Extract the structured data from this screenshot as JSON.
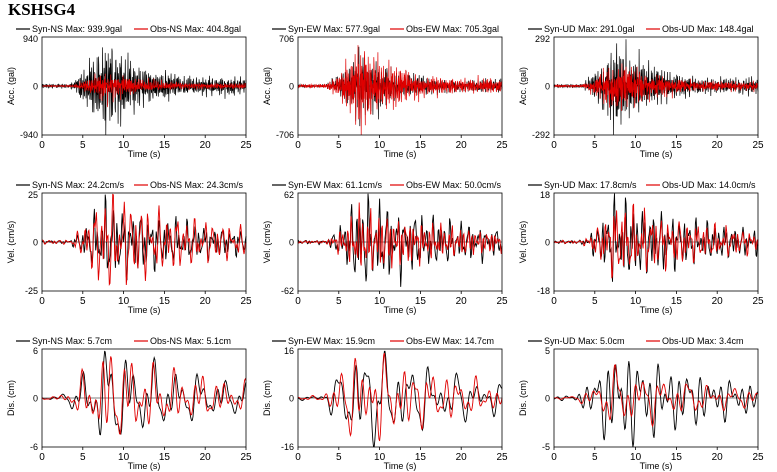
{
  "title": "KSHSG4",
  "colors": {
    "syn": "#000000",
    "obs": "#e00000"
  },
  "chart_data": [
    {
      "type": "line",
      "component": "NS",
      "quantity": "Acc.",
      "ylabel": "Acc. (gal)",
      "xlabel": "Time (s)",
      "xlim": [
        0,
        25
      ],
      "xticks": [
        0,
        5,
        10,
        15,
        20,
        25
      ],
      "ylim": [
        -940,
        940
      ],
      "yticks": [
        "940",
        "0",
        "-940"
      ],
      "legend": {
        "syn": "Syn-NS  Max: 939.9gal",
        "obs": "Obs-NS  Max: 404.8gal"
      },
      "series": [
        {
          "name": "Syn-NS",
          "max": 939.9,
          "unit": "gal",
          "color": "#000000"
        },
        {
          "name": "Obs-NS",
          "max": 404.8,
          "unit": "gal",
          "color": "#e00000"
        }
      ]
    },
    {
      "type": "line",
      "component": "EW",
      "quantity": "Acc.",
      "ylabel": "Acc. (gal)",
      "xlabel": "Time (s)",
      "xlim": [
        0,
        25
      ],
      "xticks": [
        0,
        5,
        10,
        15,
        20,
        25
      ],
      "ylim": [
        -706,
        706
      ],
      "yticks": [
        "706",
        "0",
        "-706"
      ],
      "legend": {
        "syn": "Syn-EW  Max: 577.9gal",
        "obs": "Obs-EW  Max: 705.3gal"
      },
      "series": [
        {
          "name": "Syn-EW",
          "max": 577.9,
          "unit": "gal",
          "color": "#000000"
        },
        {
          "name": "Obs-EW",
          "max": 705.3,
          "unit": "gal",
          "color": "#e00000"
        }
      ]
    },
    {
      "type": "line",
      "component": "UD",
      "quantity": "Acc.",
      "ylabel": "Acc. (gal)",
      "xlabel": "Time (s)",
      "xlim": [
        0,
        25
      ],
      "xticks": [
        0,
        5,
        10,
        15,
        20,
        25
      ],
      "ylim": [
        -292,
        292
      ],
      "yticks": [
        "292",
        "0",
        "-292"
      ],
      "legend": {
        "syn": "Syn-UD  Max: 291.0gal",
        "obs": "Obs-UD  Max: 148.4gal"
      },
      "series": [
        {
          "name": "Syn-UD",
          "max": 291.0,
          "unit": "gal",
          "color": "#000000"
        },
        {
          "name": "Obs-UD",
          "max": 148.4,
          "unit": "gal",
          "color": "#e00000"
        }
      ]
    },
    {
      "type": "line",
      "component": "NS",
      "quantity": "Vel.",
      "ylabel": "Vel. (cm/s)",
      "xlabel": "Time (s)",
      "xlim": [
        0,
        25
      ],
      "xticks": [
        0,
        5,
        10,
        15,
        20,
        25
      ],
      "ylim": [
        -25,
        25
      ],
      "yticks": [
        "25",
        "0",
        "-25"
      ],
      "legend": {
        "syn": "Syn-NS  Max: 24.2cm/s",
        "obs": "Obs-NS  Max: 24.3cm/s"
      },
      "series": [
        {
          "name": "Syn-NS",
          "max": 24.2,
          "unit": "cm/s",
          "color": "#000000"
        },
        {
          "name": "Obs-NS",
          "max": 24.3,
          "unit": "cm/s",
          "color": "#e00000"
        }
      ]
    },
    {
      "type": "line",
      "component": "EW",
      "quantity": "Vel.",
      "ylabel": "Vel. (cm/s)",
      "xlabel": "Time (s)",
      "xlim": [
        0,
        25
      ],
      "xticks": [
        0,
        5,
        10,
        15,
        20,
        25
      ],
      "ylim": [
        -62,
        62
      ],
      "yticks": [
        "62",
        "0",
        "-62"
      ],
      "legend": {
        "syn": "Syn-EW  Max: 61.1cm/s",
        "obs": "Obs-EW  Max: 50.0cm/s"
      },
      "series": [
        {
          "name": "Syn-EW",
          "max": 61.1,
          "unit": "cm/s",
          "color": "#000000"
        },
        {
          "name": "Obs-EW",
          "max": 50.0,
          "unit": "cm/s",
          "color": "#e00000"
        }
      ]
    },
    {
      "type": "line",
      "component": "UD",
      "quantity": "Vel.",
      "ylabel": "Vel. (cm/s)",
      "xlabel": "Time (s)",
      "xlim": [
        0,
        25
      ],
      "xticks": [
        0,
        5,
        10,
        15,
        20,
        25
      ],
      "ylim": [
        -18,
        18
      ],
      "yticks": [
        "18",
        "0",
        "-18"
      ],
      "legend": {
        "syn": "Syn-UD  Max: 17.8cm/s",
        "obs": "Obs-UD  Max: 14.0cm/s"
      },
      "series": [
        {
          "name": "Syn-UD",
          "max": 17.8,
          "unit": "cm/s",
          "color": "#000000"
        },
        {
          "name": "Obs-UD",
          "max": 14.0,
          "unit": "cm/s",
          "color": "#e00000"
        }
      ]
    },
    {
      "type": "line",
      "component": "NS",
      "quantity": "Dis.",
      "ylabel": "Dis. (cm)",
      "xlabel": "Time (s)",
      "xlim": [
        0,
        25
      ],
      "xticks": [
        0,
        5,
        10,
        15,
        20,
        25
      ],
      "ylim": [
        -6,
        6
      ],
      "yticks": [
        "6",
        "0",
        "-6"
      ],
      "legend": {
        "syn": "Syn-NS  Max: 5.7cm",
        "obs": "Obs-NS  Max: 5.1cm"
      },
      "series": [
        {
          "name": "Syn-NS",
          "max": 5.7,
          "unit": "cm",
          "color": "#000000"
        },
        {
          "name": "Obs-NS",
          "max": 5.1,
          "unit": "cm",
          "color": "#e00000"
        }
      ]
    },
    {
      "type": "line",
      "component": "EW",
      "quantity": "Dis.",
      "ylabel": "Dis. (cm)",
      "xlabel": "Time (s)",
      "xlim": [
        0,
        25
      ],
      "xticks": [
        0,
        5,
        10,
        15,
        20,
        25
      ],
      "ylim": [
        -16,
        16
      ],
      "yticks": [
        "16",
        "0",
        "-16"
      ],
      "legend": {
        "syn": "Syn-EW  Max: 15.9cm",
        "obs": "Obs-EW  Max: 14.7cm"
      },
      "series": [
        {
          "name": "Syn-EW",
          "max": 15.9,
          "unit": "cm",
          "color": "#000000"
        },
        {
          "name": "Obs-EW",
          "max": 14.7,
          "unit": "cm",
          "color": "#e00000"
        }
      ]
    },
    {
      "type": "line",
      "component": "UD",
      "quantity": "Dis.",
      "ylabel": "Dis. (cm)",
      "xlabel": "Time (s)",
      "xlim": [
        0,
        25
      ],
      "xticks": [
        0,
        5,
        10,
        15,
        20,
        25
      ],
      "ylim": [
        -5,
        5
      ],
      "yticks": [
        "5",
        "0",
        "-5"
      ],
      "legend": {
        "syn": "Syn-UD  Max: 5.0cm",
        "obs": "Obs-UD  Max: 3.4cm"
      },
      "series": [
        {
          "name": "Syn-UD",
          "max": 5.0,
          "unit": "cm",
          "color": "#000000"
        },
        {
          "name": "Obs-UD",
          "max": 3.4,
          "unit": "cm",
          "color": "#e00000"
        }
      ]
    }
  ]
}
